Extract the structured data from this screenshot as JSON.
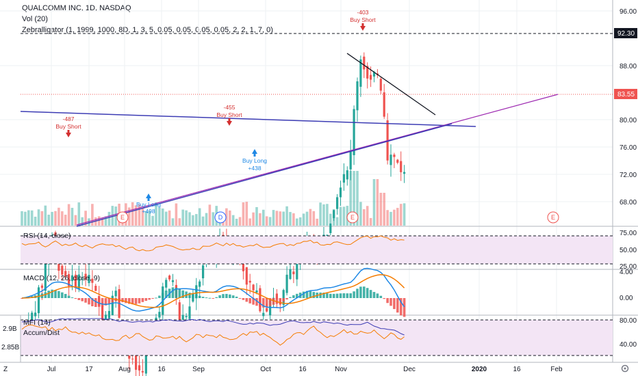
{
  "header": {
    "symbol_line": "QUALCOMM INC, 1D, NASDAQ",
    "vol_line": "Vol (20)",
    "zebralligator_line": "Zebralligator (1, 1999, 1000, 8D, 1, 3, 5, 0.05, 0.05, 0.05, 0.05, 2, 2, 1, 7, 0)"
  },
  "price_axis": {
    "ticks": [
      "96.00",
      "92.30",
      "88.00",
      "83.55",
      "80.00",
      "76.00",
      "72.00",
      "68.00"
    ],
    "last_price": "83.55",
    "resistance_label": "92.30"
  },
  "rsi_pane": {
    "label": "RSI (14, close)",
    "ticks": [
      "75.00",
      "50.00",
      "25.00"
    ]
  },
  "macd_pane": {
    "label": "MACD (12, 26, close, 9)",
    "ticks": [
      "4.00",
      "0.00"
    ]
  },
  "mfi_pane": {
    "label": "MFI (14)",
    "label2": "Accum/Dist",
    "ticks_right": [
      "80.00",
      "40.00"
    ],
    "ticks_left": [
      "2.9B",
      "2.85B"
    ]
  },
  "time_axis": {
    "ticks": [
      "Jul",
      "17",
      "Aug",
      "16",
      "Sep",
      "Oct",
      "16",
      "Nov",
      "Dec",
      "2020",
      "16",
      "Feb"
    ]
  },
  "signals": [
    {
      "value": "-487",
      "text": "Buy Short"
    },
    {
      "value": "-455",
      "text": "Buy Short"
    },
    {
      "value": "-403",
      "text": "Buy Short"
    },
    {
      "value": "+438",
      "text": "Buy Long"
    },
    {
      "value": "+498",
      "text": "Buy Long"
    }
  ],
  "events": [
    "E",
    "D",
    "E",
    "E"
  ],
  "corner": {
    "left": "Z",
    "right": "gear-icon"
  },
  "colors": {
    "up": "#26a69a",
    "down": "#ef5350",
    "trendline": "#3c3cb4",
    "support": "#9c27b0",
    "pane_fill": "#f3e5f5"
  }
}
